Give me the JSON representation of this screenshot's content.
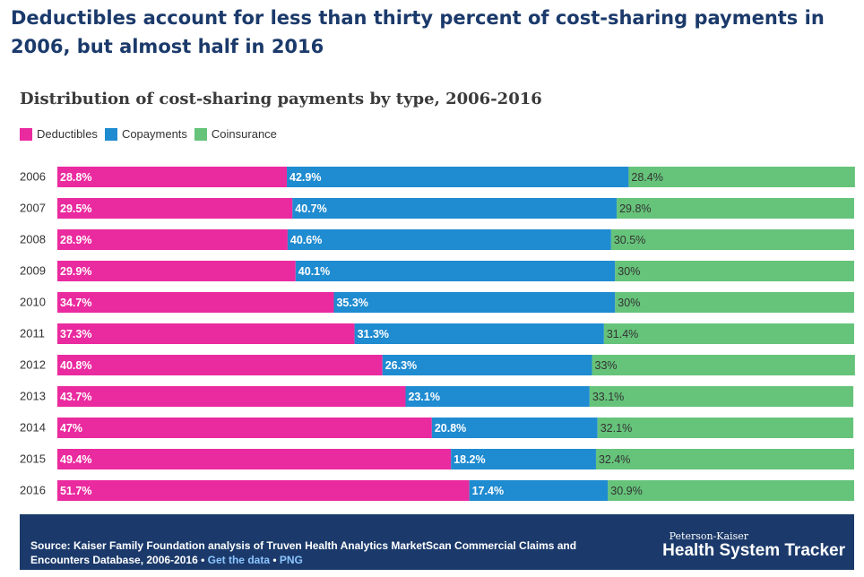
{
  "headline": "Deductibles account for less than thirty percent of cost-sharing payments in 2006, but almost half in 2016",
  "colors": {
    "Deductibles": "#ea2a9f",
    "Copayments": "#1f8bd0",
    "Coinsurance": "#66c37a"
  },
  "chart_data": {
    "type": "bar",
    "orientation": "horizontal",
    "stacked": true,
    "title": "Distribution of cost-sharing payments by type, 2006-2016",
    "legend_position": "top-left",
    "grid": false,
    "xlim": [
      0,
      100
    ],
    "categories": [
      "2006",
      "2007",
      "2008",
      "2009",
      "2010",
      "2011",
      "2012",
      "2013",
      "2014",
      "2015",
      "2016"
    ],
    "series": [
      {
        "name": "Deductibles",
        "values": [
          28.8,
          29.5,
          28.9,
          29.9,
          34.7,
          37.3,
          40.8,
          43.7,
          47,
          49.4,
          51.7
        ],
        "labels": [
          "28.8%",
          "29.5%",
          "28.9%",
          "29.9%",
          "34.7%",
          "37.3%",
          "40.8%",
          "43.7%",
          "47%",
          "49.4%",
          "51.7%"
        ]
      },
      {
        "name": "Copayments",
        "values": [
          42.9,
          40.7,
          40.6,
          40.1,
          35.3,
          31.3,
          26.3,
          23.1,
          20.8,
          18.2,
          17.4
        ],
        "labels": [
          "42.9%",
          "40.7%",
          "40.6%",
          "40.1%",
          "35.3%",
          "31.3%",
          "26.3%",
          "23.1%",
          "20.8%",
          "18.2%",
          "17.4%"
        ]
      },
      {
        "name": "Coinsurance",
        "values": [
          28.4,
          29.8,
          30.5,
          30,
          30,
          31.4,
          33,
          33.1,
          32.1,
          32.4,
          30.9
        ],
        "labels": [
          "28.4%",
          "29.8%",
          "30.5%",
          "30%",
          "30%",
          "31.4%",
          "33%",
          "33.1%",
          "32.1%",
          "32.4%",
          "30.9%"
        ]
      }
    ]
  },
  "footer": {
    "source_prefix": "Source: Kaiser Family Foundation analysis of Truven Health Analytics MarketScan Commercial Claims and Encounters Database, 2006-2016",
    "separator": " • ",
    "get_data_link": "Get the data",
    "png_link": "PNG",
    "brand_top": "Peterson-Kaiser",
    "brand_main": "Health System Tracker"
  }
}
